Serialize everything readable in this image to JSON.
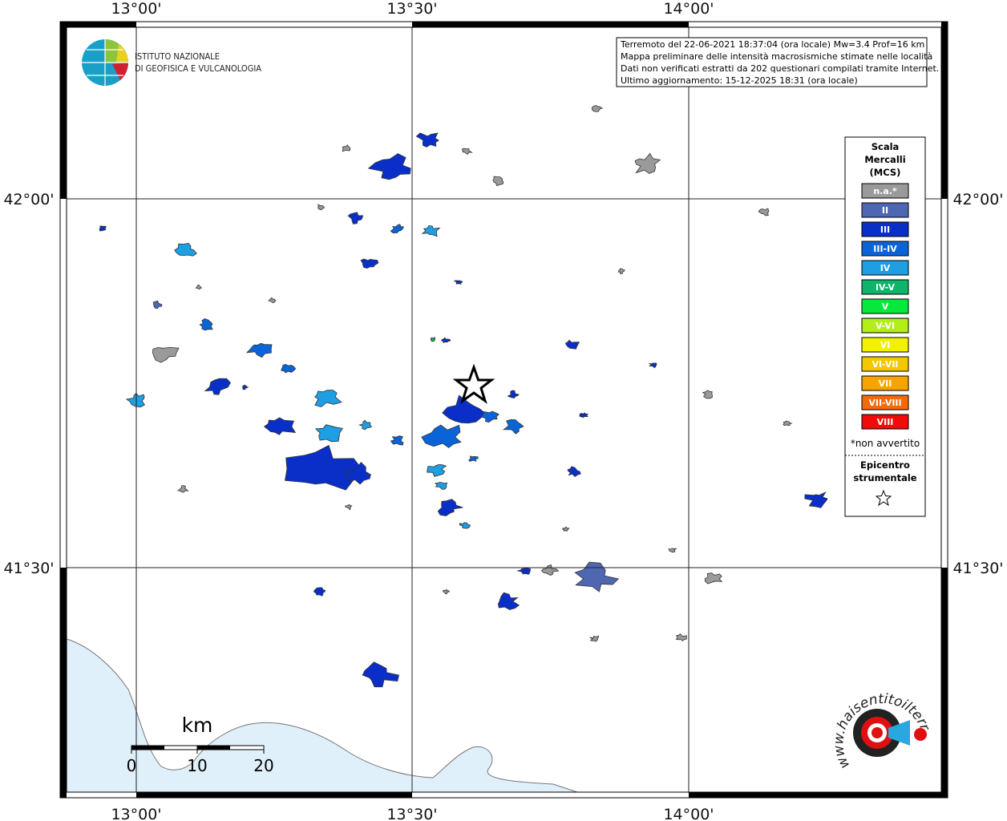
{
  "map": {
    "longitude_labels": [
      "13°00'",
      "13°30'",
      "14°00'"
    ],
    "latitude_labels": [
      "42°00'",
      "41°30'"
    ],
    "institute": [
      "ISTITUTO NAZIONALE",
      "DI GEOFISICA E VULCANOLOGIA"
    ],
    "info": [
      "Terremoto del 22-06-2021 18:37:04 (ora locale) Mw=3.4 Prof=16 km",
      "Mappa preliminare delle intensità macrosismiche stimate nelle località",
      "Dati non verificati estratti da 202 questionari compilati tramite Internet.",
      "Ultimo aggiornamento: 15-12-2025 18:31 (ora locale)"
    ],
    "legend": {
      "title": [
        "Scala",
        "Mercalli",
        "(MCS)"
      ],
      "items": [
        {
          "label": "n.a.*",
          "color": "#9a9a9a"
        },
        {
          "label": "II",
          "color": "#4f67b3"
        },
        {
          "label": "III",
          "color": "#0a2fc8"
        },
        {
          "label": "III-IV",
          "color": "#0a64d8"
        },
        {
          "label": "IV",
          "color": "#1e9ee3"
        },
        {
          "label": "IV-V",
          "color": "#0fb46a"
        },
        {
          "label": "V",
          "color": "#08e83a"
        },
        {
          "label": "V-VI",
          "color": "#b4ee1a"
        },
        {
          "label": "VI",
          "color": "#f2f200"
        },
        {
          "label": "VI-VII",
          "color": "#f4c800"
        },
        {
          "label": "VII",
          "color": "#f6a400"
        },
        {
          "label": "VII-VIII",
          "color": "#f46a0a"
        },
        {
          "label": "VIII",
          "color": "#f00a0a"
        }
      ],
      "note": "*non avvertito",
      "epicenter": [
        "Epicentro",
        "strumentale"
      ]
    },
    "scale_bar": {
      "unit": "km",
      "labels": [
        "0",
        "10",
        "20"
      ]
    },
    "site": "www.haisentitoilterremoto.it"
  }
}
